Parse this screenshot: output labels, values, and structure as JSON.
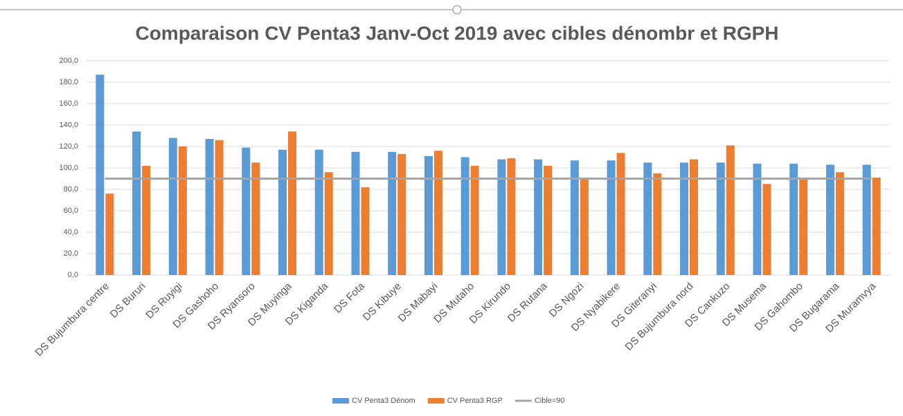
{
  "chart_data": {
    "type": "bar",
    "title": "Comparaison CV Penta3 Janv-Oct 2019 avec cibles dénombr et RGPH",
    "categories": [
      "DS Bujumbura centre",
      "DS Bururi",
      "DS Ruyigi",
      "DS Gashoho",
      "DS Ryansoro",
      "DS Muyinga",
      "DS Kiganda",
      "DS Fota",
      "DS Kibuye",
      "DS Mabayi",
      "DS Mutaho",
      "DS Kirundo",
      "DS Rutana",
      "DS Ngozi",
      "DS Nyabikere",
      "DS Giteranyi",
      "DS Bujumbura nord",
      "DS Cankuzo",
      "DS Musema",
      "DS Gahombo",
      "DS Bugarama",
      "DS Muramvya"
    ],
    "series": [
      {
        "name": "CV Penta3 Dénom",
        "type": "bar",
        "color": "#5b9bd5",
        "values": [
          187,
          134,
          128,
          127,
          119,
          117,
          117,
          115,
          115,
          111,
          110,
          108,
          108,
          107,
          107,
          105,
          105,
          105,
          104,
          104,
          103,
          103
        ]
      },
      {
        "name": "CV Penta3 RGP",
        "type": "bar",
        "color": "#ed7d31",
        "values": [
          76,
          102,
          120,
          126,
          105,
          134,
          96,
          82,
          113,
          116,
          102,
          109,
          102,
          89,
          114,
          95,
          108,
          121,
          85,
          91,
          96,
          91
        ]
      },
      {
        "name": "Cible=90",
        "type": "line",
        "color": "#a5a5a5",
        "values": [
          90,
          90,
          90,
          90,
          90,
          90,
          90,
          90,
          90,
          90,
          90,
          90,
          90,
          90,
          90,
          90,
          90,
          90,
          90,
          90,
          90,
          90
        ]
      }
    ],
    "ylim": [
      0,
      200
    ],
    "yticks": [
      {
        "value": 0,
        "label": "0,0"
      },
      {
        "value": 20,
        "label": "20,0"
      },
      {
        "value": 40,
        "label": "40,0"
      },
      {
        "value": 60,
        "label": "60,0"
      },
      {
        "value": 80,
        "label": "80,0"
      },
      {
        "value": 100,
        "label": "100,0"
      },
      {
        "value": 120,
        "label": "120,0"
      },
      {
        "value": 140,
        "label": "140,0"
      },
      {
        "value": 160,
        "label": "160,0"
      },
      {
        "value": 180,
        "label": "180,0"
      },
      {
        "value": 200,
        "label": "200,0"
      }
    ],
    "grid": true,
    "legend": "bottom"
  }
}
